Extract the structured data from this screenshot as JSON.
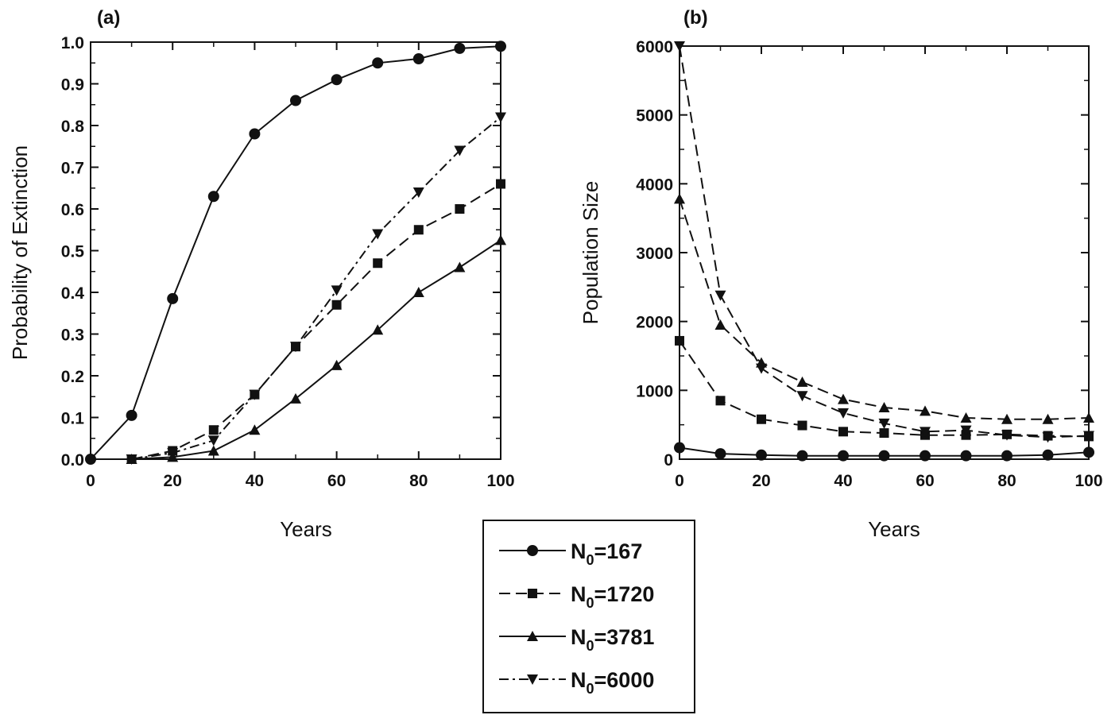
{
  "chart_data": [
    {
      "panel": "(a)",
      "type": "line",
      "xlabel": "Years",
      "ylabel": "Probability of Extinction",
      "xlim": [
        0,
        100
      ],
      "ylim": [
        0,
        1.0
      ],
      "x_ticks": [
        "0",
        "20",
        "40",
        "60",
        "80",
        "100"
      ],
      "y_ticks": [
        "0.0",
        "0.1",
        "0.2",
        "0.3",
        "0.4",
        "0.5",
        "0.6",
        "0.7",
        "0.8",
        "0.9",
        "1.0"
      ],
      "grid": false,
      "series": [
        {
          "name": "N0=167",
          "marker": "circle",
          "dash": "solid",
          "x": [
            0,
            10,
            20,
            30,
            40,
            50,
            60,
            70,
            80,
            90,
            100
          ],
          "y": [
            0.0,
            0.105,
            0.385,
            0.63,
            0.78,
            0.86,
            0.91,
            0.95,
            0.96,
            0.985,
            0.99
          ]
        },
        {
          "name": "N0=1720",
          "marker": "square",
          "dash": "long-dash",
          "x": [
            10,
            20,
            30,
            40,
            50,
            60,
            70,
            80,
            90,
            100
          ],
          "y": [
            0.0,
            0.02,
            0.07,
            0.155,
            0.27,
            0.37,
            0.47,
            0.55,
            0.6,
            0.66
          ]
        },
        {
          "name": "N0=3781",
          "marker": "triangle-up",
          "dash": "solid",
          "x": [
            10,
            20,
            30,
            40,
            50,
            60,
            70,
            80,
            90,
            100
          ],
          "y": [
            0.0,
            0.005,
            0.02,
            0.07,
            0.145,
            0.225,
            0.31,
            0.4,
            0.46,
            0.525
          ]
        },
        {
          "name": "N0=6000",
          "marker": "triangle-down",
          "dash": "dash-dot",
          "x": [
            10,
            20,
            30,
            40,
            50,
            60,
            70,
            80,
            90,
            100
          ],
          "y": [
            0.0,
            0.015,
            0.045,
            0.155,
            0.27,
            0.405,
            0.54,
            0.64,
            0.74,
            0.82
          ]
        }
      ]
    },
    {
      "panel": "(b)",
      "type": "line",
      "xlabel": "Years",
      "ylabel": "Population Size",
      "xlim": [
        0,
        100
      ],
      "ylim": [
        0,
        6000
      ],
      "x_ticks": [
        "0",
        "20",
        "40",
        "60",
        "80",
        "100"
      ],
      "y_ticks": [
        "0",
        "1000",
        "2000",
        "3000",
        "4000",
        "5000",
        "6000"
      ],
      "grid": false,
      "series": [
        {
          "name": "N0=167",
          "marker": "circle",
          "dash": "solid",
          "x": [
            0,
            10,
            20,
            30,
            40,
            50,
            60,
            70,
            80,
            90,
            100
          ],
          "y": [
            167,
            80,
            60,
            50,
            50,
            50,
            50,
            50,
            50,
            60,
            100
          ]
        },
        {
          "name": "N0=1720",
          "marker": "square",
          "dash": "long-dash",
          "x": [
            0,
            10,
            20,
            30,
            40,
            50,
            60,
            70,
            80,
            90,
            100
          ],
          "y": [
            1720,
            850,
            580,
            490,
            400,
            380,
            350,
            350,
            360,
            340,
            330
          ]
        },
        {
          "name": "N0=3781",
          "marker": "triangle-up",
          "dash": "long-dash",
          "x": [
            0,
            10,
            20,
            30,
            40,
            50,
            60,
            70,
            80,
            90,
            100
          ],
          "y": [
            3781,
            1950,
            1400,
            1120,
            870,
            750,
            700,
            600,
            580,
            580,
            600
          ]
        },
        {
          "name": "N0=6000",
          "marker": "triangle-down",
          "dash": "long-dash",
          "x": [
            0,
            10,
            20,
            30,
            40,
            50,
            60,
            70,
            80,
            90,
            100
          ],
          "y": [
            6000,
            2380,
            1320,
            920,
            670,
            520,
            400,
            420,
            350,
            320,
            340
          ]
        }
      ]
    }
  ],
  "legend": {
    "entries": [
      {
        "prefix": "N",
        "sub": "0",
        "suffix": "=167",
        "marker": "circle",
        "dash": "solid"
      },
      {
        "prefix": "N",
        "sub": "0",
        "suffix": "=1720",
        "marker": "square",
        "dash": "long-dash"
      },
      {
        "prefix": "N",
        "sub": "0",
        "suffix": "=3781",
        "marker": "triangle-up",
        "dash": "solid"
      },
      {
        "prefix": "N",
        "sub": "0",
        "suffix": "=6000",
        "marker": "triangle-down",
        "dash": "dash-dot"
      }
    ]
  }
}
